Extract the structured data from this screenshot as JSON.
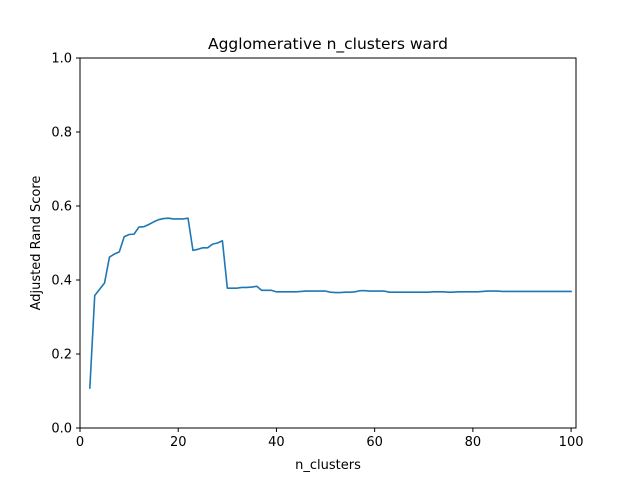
{
  "chart_data": {
    "type": "line",
    "title": "Agglomerative n_clusters ward",
    "xlabel": "n_clusters",
    "ylabel": "Adjusted Rand Score",
    "xlim": [
      0,
      101
    ],
    "ylim": [
      0.0,
      1.0
    ],
    "xticks": [
      0,
      20,
      40,
      60,
      80,
      100
    ],
    "xtick_labels": [
      "0",
      "20",
      "40",
      "60",
      "80",
      "100"
    ],
    "yticks": [
      0.0,
      0.2,
      0.4,
      0.6,
      0.8,
      1.0
    ],
    "ytick_labels": [
      "0.0",
      "0.2",
      "0.4",
      "0.6",
      "0.8",
      "1.0"
    ],
    "grid": false,
    "series": [
      {
        "color": "#1f77b4",
        "x": [
          2,
          3,
          4,
          5,
          6,
          7,
          8,
          9,
          10,
          11,
          12,
          13,
          14,
          15,
          16,
          17,
          18,
          19,
          20,
          21,
          22,
          23,
          24,
          25,
          26,
          27,
          28,
          29,
          30,
          31,
          32,
          33,
          34,
          35,
          36,
          37,
          38,
          39,
          40,
          41,
          42,
          43,
          44,
          45,
          46,
          47,
          48,
          49,
          50,
          51,
          52,
          53,
          54,
          55,
          56,
          57,
          58,
          59,
          60,
          61,
          62,
          63,
          64,
          65,
          66,
          67,
          68,
          69,
          70,
          71,
          72,
          73,
          74,
          75,
          76,
          77,
          78,
          79,
          80,
          81,
          82,
          83,
          84,
          85,
          86,
          87,
          88,
          89,
          90,
          91,
          92,
          93,
          94,
          95,
          96,
          97,
          98,
          99,
          100
        ],
        "y": [
          0.108,
          0.358,
          0.375,
          0.392,
          0.462,
          0.47,
          0.476,
          0.517,
          0.523,
          0.524,
          0.543,
          0.544,
          0.55,
          0.557,
          0.563,
          0.566,
          0.567,
          0.565,
          0.565,
          0.565,
          0.567,
          0.48,
          0.483,
          0.487,
          0.487,
          0.497,
          0.5,
          0.506,
          0.378,
          0.378,
          0.378,
          0.38,
          0.38,
          0.381,
          0.383,
          0.372,
          0.372,
          0.372,
          0.368,
          0.368,
          0.368,
          0.368,
          0.368,
          0.369,
          0.37,
          0.37,
          0.37,
          0.37,
          0.37,
          0.367,
          0.366,
          0.366,
          0.367,
          0.367,
          0.368,
          0.371,
          0.371,
          0.37,
          0.37,
          0.37,
          0.37,
          0.367,
          0.367,
          0.367,
          0.367,
          0.367,
          0.367,
          0.367,
          0.367,
          0.367,
          0.368,
          0.368,
          0.368,
          0.367,
          0.367,
          0.368,
          0.368,
          0.368,
          0.368,
          0.368,
          0.369,
          0.37,
          0.37,
          0.37,
          0.369,
          0.369,
          0.369,
          0.369,
          0.369,
          0.369,
          0.369,
          0.369,
          0.369,
          0.369,
          0.369,
          0.369,
          0.369,
          0.369,
          0.369
        ]
      }
    ]
  }
}
